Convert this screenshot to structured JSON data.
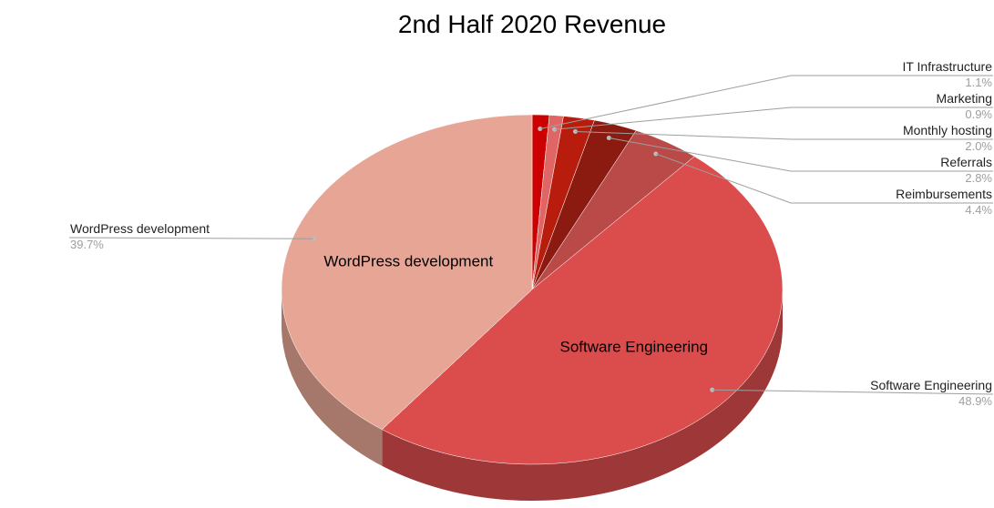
{
  "chart_data": {
    "type": "pie",
    "title": "2nd Half 2020 Revenue",
    "slices": [
      {
        "label": "IT Infrastructure",
        "value": 1.1,
        "value_label": "1.1%",
        "color": "#cc0000"
      },
      {
        "label": "Marketing",
        "value": 0.9,
        "value_label": "0.9%",
        "color": "#e06666"
      },
      {
        "label": "Monthly hosting",
        "value": 2.0,
        "value_label": "2.0%",
        "color": "#b71c0c"
      },
      {
        "label": "Referrals",
        "value": 2.8,
        "value_label": "2.8%",
        "color": "#8b1a10"
      },
      {
        "label": "Reimbursements",
        "value": 4.4,
        "value_label": "4.4%",
        "color": "#b94a48"
      },
      {
        "label": "Software Engineering",
        "value": 48.9,
        "value_label": "48.9%",
        "color": "#db4c4c"
      },
      {
        "label": "WordPress development",
        "value": 39.7,
        "value_label": "39.7%",
        "color": "#e6a595"
      }
    ],
    "inside_labels": [
      "WordPress development",
      "Software Engineering"
    ],
    "legend": "none"
  }
}
